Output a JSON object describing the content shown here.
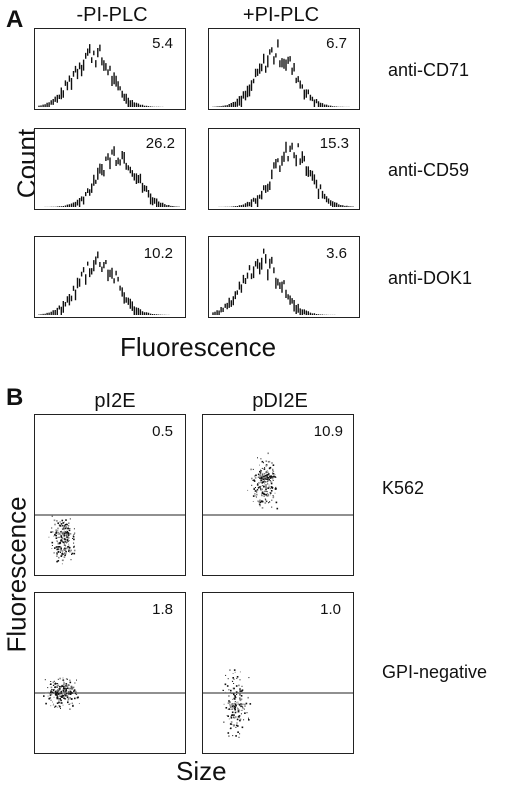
{
  "panel_a": {
    "letter": "A",
    "columns": [
      "-PI-PLC",
      "+PI-PLC"
    ],
    "rows": [
      {
        "label": "anti-CD71",
        "values": [
          "5.4",
          "6.7"
        ],
        "peak": [
          0.38,
          0.45
        ]
      },
      {
        "label": "anti-CD59",
        "values": [
          "26.2",
          "15.3"
        ],
        "peak": [
          0.55,
          0.55
        ]
      },
      {
        "label": "anti-DOK1",
        "values": [
          "10.2",
          "3.6"
        ],
        "peak": [
          0.42,
          0.35
        ]
      }
    ],
    "ylabel": "Count",
    "xlabel": "Fluorescence"
  },
  "panel_b": {
    "letter": "B",
    "columns": [
      "pI2E",
      "pDI2E"
    ],
    "rows": [
      {
        "label": "K562",
        "values": [
          "0.5",
          "10.9"
        ]
      },
      {
        "label": "GPI-negative",
        "values": [
          "1.8",
          "1.0"
        ]
      }
    ],
    "ylabel": "Fluorescence",
    "xlabel": "Size"
  }
}
